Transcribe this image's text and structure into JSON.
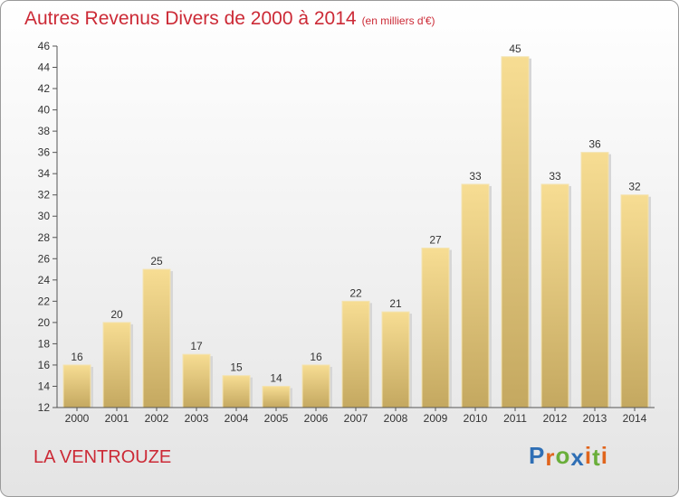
{
  "title": {
    "main": "Autres Revenus Divers de 2000 à 2014",
    "unit": "(en milliers d'€)"
  },
  "commune": "LA VENTROUZE",
  "logo": {
    "text": "Proxiti",
    "letters": [
      {
        "ch": "P",
        "color": "#2f6fb5"
      },
      {
        "ch": "r",
        "color": "#e0651d"
      },
      {
        "ch": "o",
        "color": "#6aae3a"
      },
      {
        "ch": "x",
        "color": "#2f6fb5"
      },
      {
        "ch": "i",
        "color": "#e0651d"
      },
      {
        "ch": "t",
        "color": "#6aae3a"
      },
      {
        "ch": "i",
        "color": "#e0651d"
      }
    ]
  },
  "colors": {
    "title": "#cc2a36",
    "bar_top": "#f7dd93",
    "bar_bottom": "#c4a860"
  },
  "chart_data": {
    "type": "bar",
    "title": "Autres Revenus Divers de 2000 à 2014",
    "subtitle": "(en milliers d'€)",
    "categories": [
      "2000",
      "2001",
      "2002",
      "2003",
      "2004",
      "2005",
      "2006",
      "2007",
      "2008",
      "2009",
      "2010",
      "2011",
      "2012",
      "2013",
      "2014"
    ],
    "values": [
      16,
      20,
      25,
      17,
      15,
      14,
      16,
      22,
      21,
      27,
      33,
      45,
      33,
      36,
      32
    ],
    "xlabel": "",
    "ylabel": "",
    "ylim": [
      12,
      46
    ],
    "yticks": [
      12,
      14,
      16,
      18,
      20,
      22,
      24,
      26,
      28,
      30,
      32,
      34,
      36,
      38,
      40,
      42,
      44,
      46
    ],
    "grid": false,
    "data_labels": true
  }
}
